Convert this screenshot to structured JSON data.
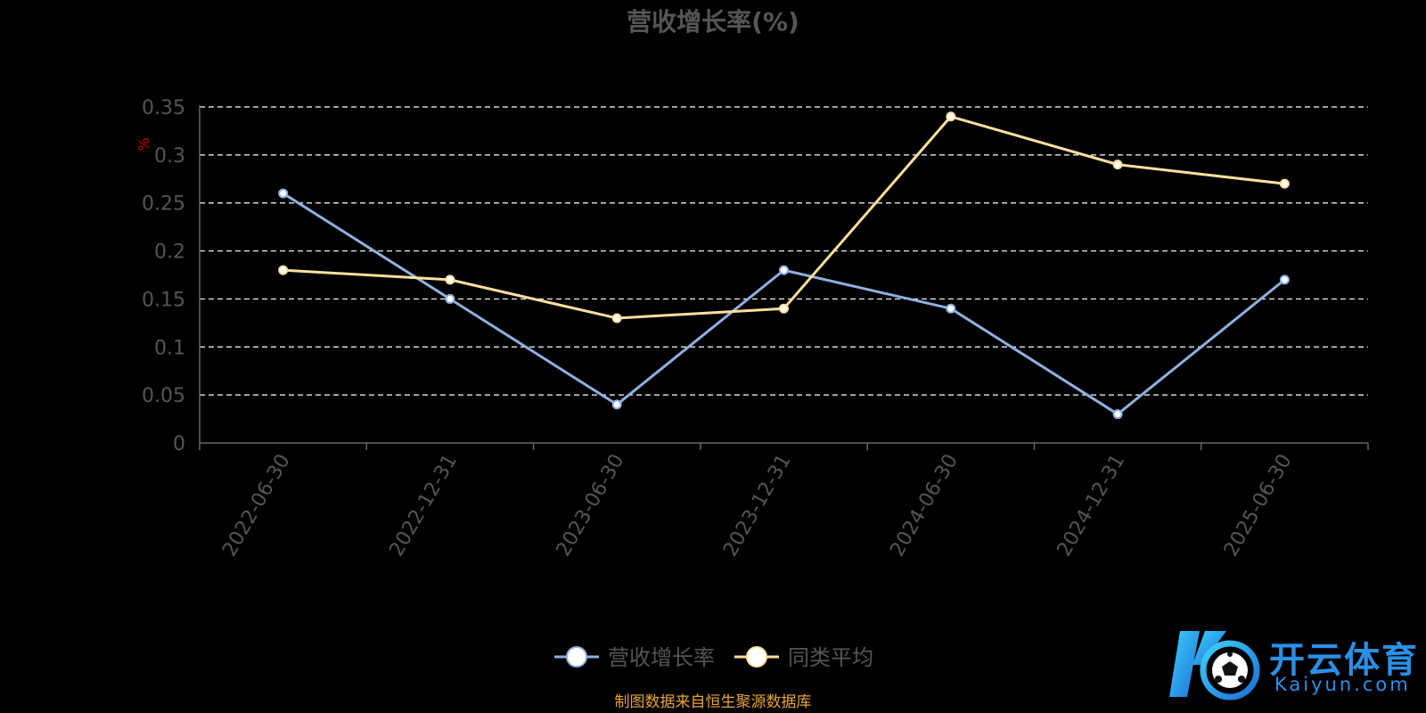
{
  "chart_data": {
    "type": "line",
    "title": "营收增长率(%)",
    "ylabel": "%",
    "ylim": [
      0,
      0.35
    ],
    "yticks": [
      "0",
      "0.05",
      "0.1",
      "0.15",
      "0.2",
      "0.25",
      "0.3",
      "0.35"
    ],
    "ytick_values": [
      0,
      0.05,
      0.1,
      0.15,
      0.2,
      0.25,
      0.3,
      0.35
    ],
    "categories": [
      "2022-06-30",
      "2022-12-31",
      "2023-06-30",
      "2023-12-31",
      "2024-06-30",
      "2024-12-31",
      "2025-06-30"
    ],
    "grid": true,
    "legend_position": "bottom-center",
    "series": [
      {
        "name": "营收增长率",
        "color": "#8fb0e0",
        "values": [
          0.26,
          0.15,
          0.04,
          0.18,
          0.14,
          0.03,
          0.17
        ]
      },
      {
        "name": "同类平均",
        "color": "#ffdf9e",
        "values": [
          0.18,
          0.17,
          0.13,
          0.14,
          0.34,
          0.29,
          0.27
        ]
      }
    ]
  },
  "source_note": "制图数据来自恒生聚源数据库",
  "watermark": {
    "logo_icon": "k-soccer-ball-logo-icon",
    "text_main": "开云体育",
    "text_sub": "Kaiyun.com"
  },
  "colors": {
    "background": "#000000",
    "axis": "#666666",
    "tick_text": "#555555",
    "grid": "#ffffff",
    "title": "#555555",
    "ylabel": "#cc0000",
    "source_note": "#e8a33d"
  }
}
